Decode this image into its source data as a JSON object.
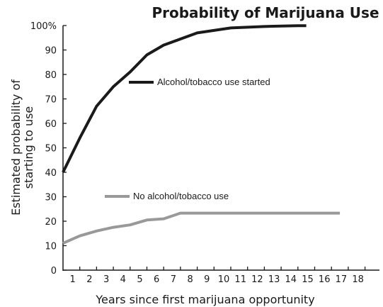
{
  "chart_data": {
    "type": "line",
    "title": "Probability of Marijuana Use",
    "xlabel": "Years since first marijuana opportunity",
    "ylabel": [
      "Estimated probability of",
      "starting to use"
    ],
    "xlim": [
      0,
      18
    ],
    "ylim": [
      0,
      100
    ],
    "x_ticks": [
      "1",
      "2",
      "3",
      "4",
      "5",
      "6",
      "7",
      "8",
      "9",
      "10",
      "11",
      "12",
      "13",
      "14",
      "15",
      "16",
      "17",
      "18"
    ],
    "y_ticks": [
      "0",
      "10",
      "20",
      "30",
      "40",
      "50",
      "60",
      "70",
      "80",
      "90",
      "100%"
    ],
    "grid": false,
    "series": [
      {
        "name": "Alcohol/tobacco use started",
        "color": "#1a1a1a",
        "x": [
          0,
          1,
          2,
          3,
          4,
          5,
          6,
          7,
          8,
          9,
          10,
          11,
          12,
          13,
          14,
          14.5
        ],
        "y": [
          40,
          54,
          67,
          75,
          81,
          88,
          92,
          94.5,
          97,
          98,
          99,
          99.3,
          99.6,
          99.8,
          99.9,
          99.9
        ]
      },
      {
        "name": "No alcohol/tobacco use",
        "color": "#999999",
        "x": [
          0,
          1,
          2,
          3,
          4,
          5,
          6,
          7,
          8,
          9,
          10,
          11,
          12,
          13,
          14,
          15,
          16,
          16.5
        ],
        "y": [
          11,
          14,
          16,
          17.5,
          18.5,
          20.5,
          21,
          23.3,
          23.3,
          23.3,
          23.3,
          23.3,
          23.3,
          23.3,
          23.3,
          23.3,
          23.3,
          23.3
        ]
      }
    ]
  }
}
